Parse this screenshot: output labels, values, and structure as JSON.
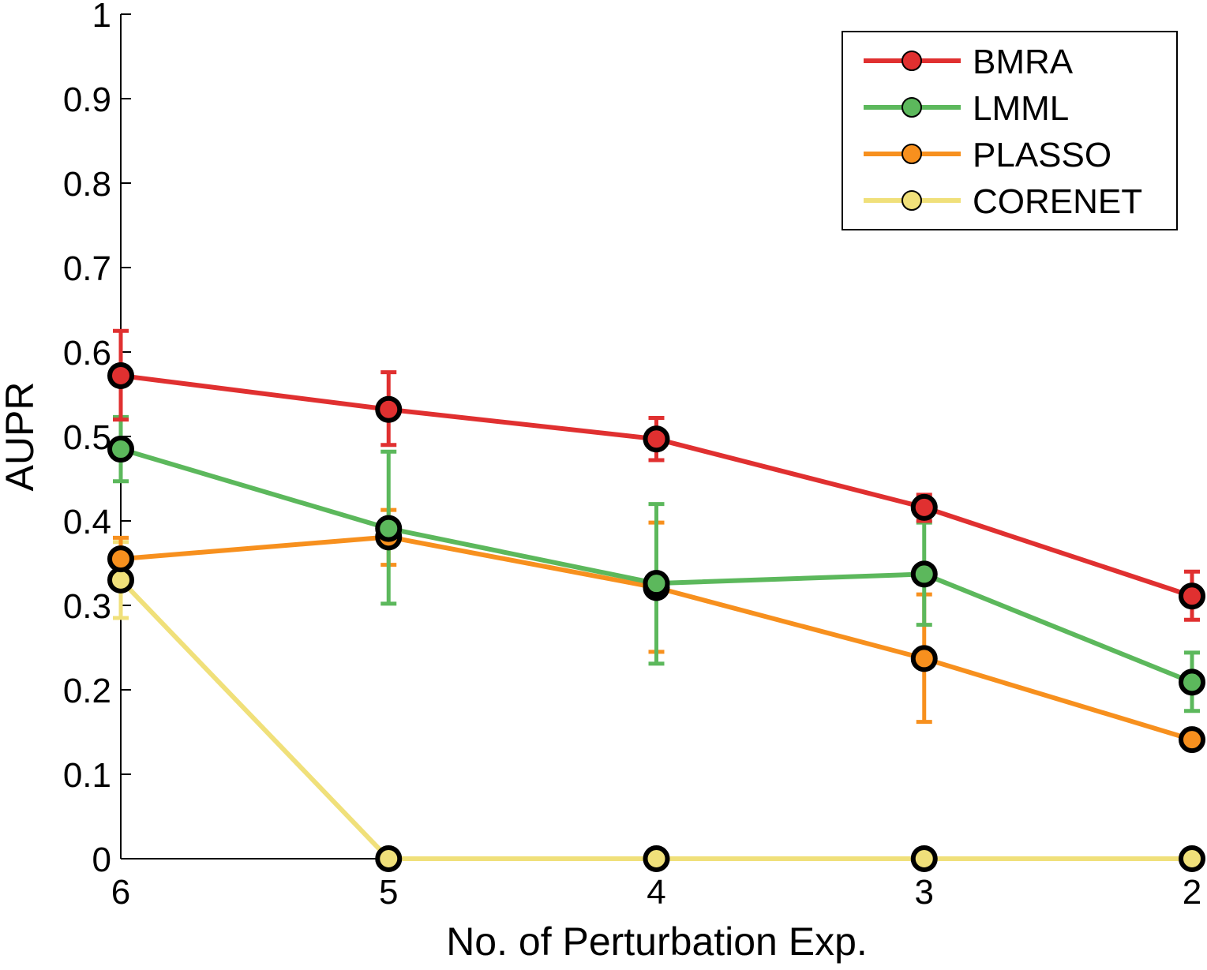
{
  "chart_data": {
    "type": "line",
    "title": "",
    "xlabel": "No. of Perturbation Exp.",
    "ylabel": "AUPR",
    "categories": [
      "6",
      "5",
      "4",
      "3",
      "2"
    ],
    "xlim": [
      6,
      2
    ],
    "ylim": [
      0,
      1
    ],
    "yticks": [
      "0",
      "0.1",
      "0.2",
      "0.3",
      "0.4",
      "0.5",
      "0.6",
      "0.7",
      "0.8",
      "0.9",
      "1"
    ],
    "grid": false,
    "legend_position": "top-right",
    "series": [
      {
        "name": "BMRA",
        "color": "#e03030",
        "values": [
          0.572,
          0.532,
          0.497,
          0.416,
          0.311
        ],
        "err_low": [
          0.52,
          0.49,
          0.472,
          0.4,
          0.283
        ],
        "err_high": [
          0.625,
          0.576,
          0.522,
          0.431,
          0.34
        ]
      },
      {
        "name": "LMML",
        "color": "#5cb85c",
        "values": [
          0.485,
          0.391,
          0.326,
          0.337,
          0.209
        ],
        "err_low": [
          0.447,
          0.302,
          0.231,
          0.277,
          0.175
        ],
        "err_high": [
          0.523,
          0.482,
          0.42,
          0.398,
          0.244
        ]
      },
      {
        "name": "PLASSO",
        "color": "#f7901e",
        "values": [
          0.355,
          0.381,
          0.321,
          0.237,
          0.141
        ],
        "err_low": [
          0.33,
          0.348,
          0.245,
          0.162,
          0.131
        ],
        "err_high": [
          0.38,
          0.413,
          0.398,
          0.313,
          0.152
        ]
      },
      {
        "name": "CORENET",
        "color": "#f0e07a",
        "values": [
          0.33,
          0.0,
          0.0,
          0.0,
          0.0
        ],
        "err_low": [
          0.285,
          0.0,
          0.0,
          0.0,
          0.0
        ],
        "err_high": [
          0.375,
          0.0,
          0.0,
          0.0,
          0.0
        ]
      }
    ]
  }
}
